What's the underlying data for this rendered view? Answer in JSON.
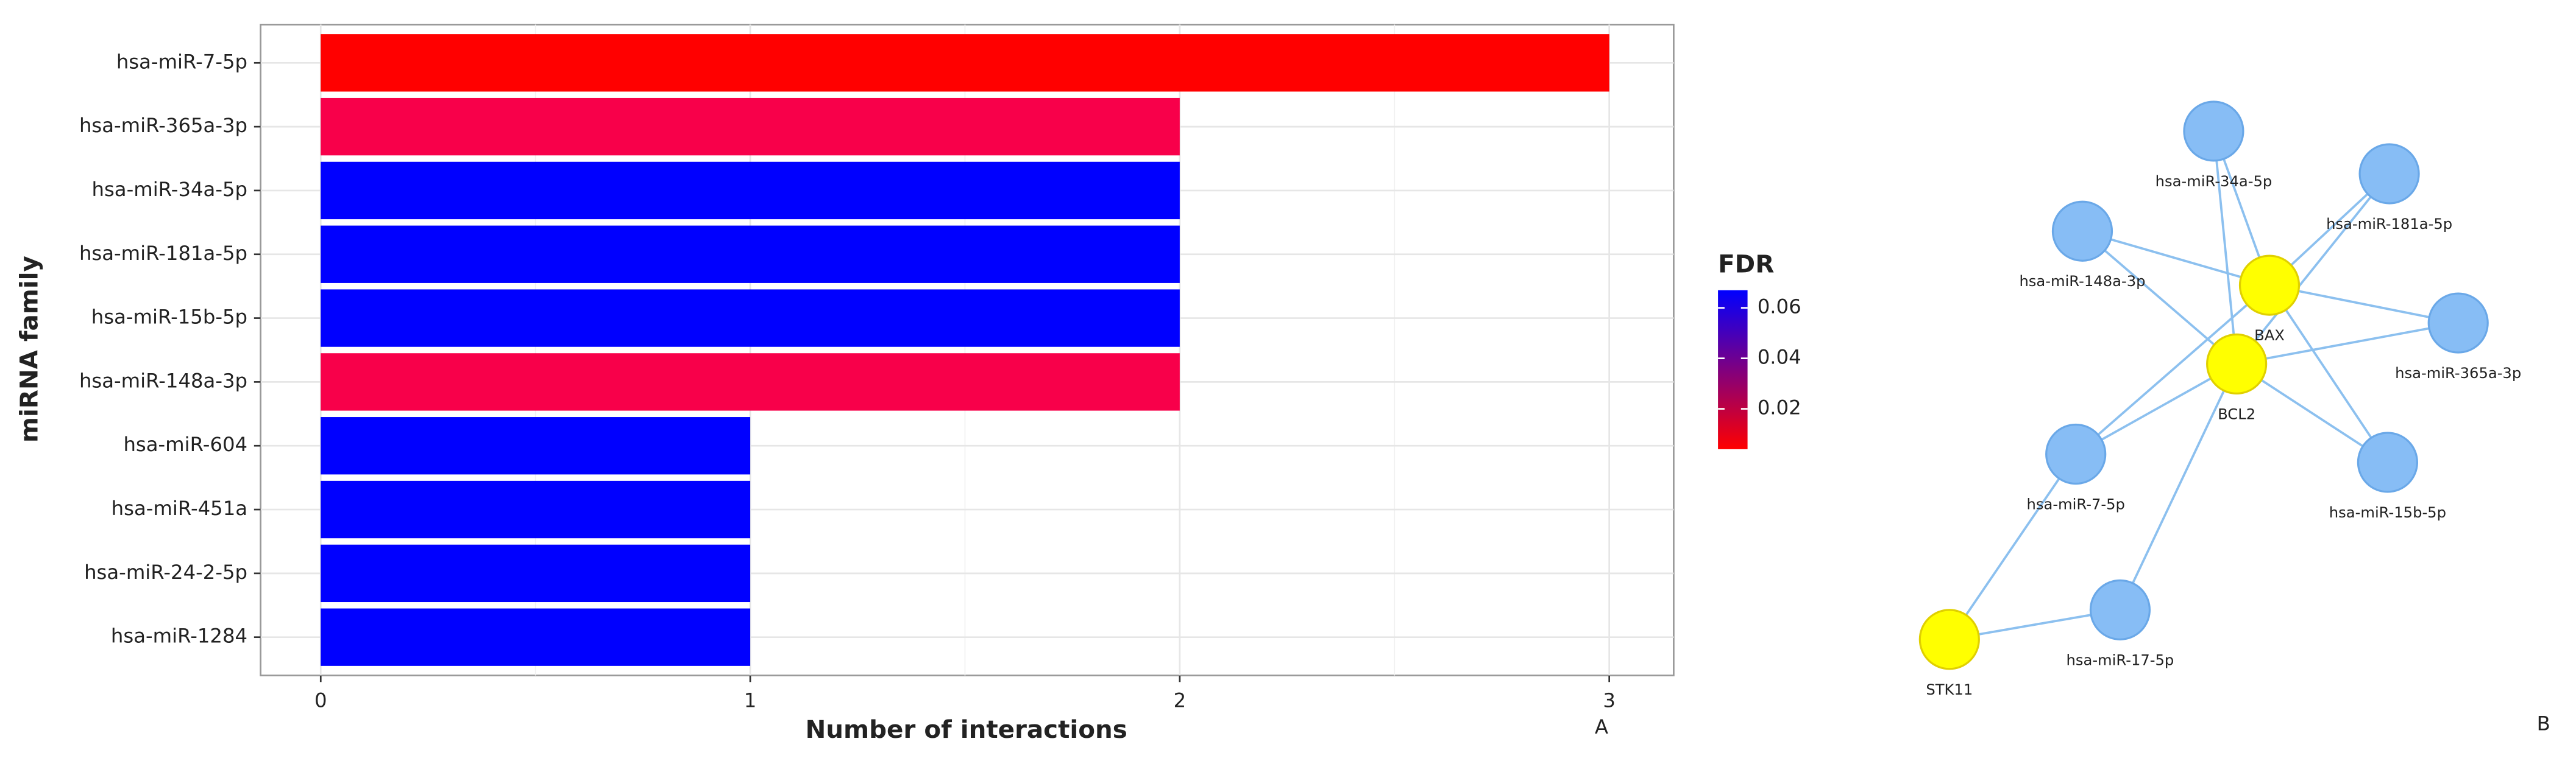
{
  "chart_data": {
    "type": "bar",
    "orientation": "horizontal",
    "categories": [
      "hsa-miR-7-5p",
      "hsa-miR-365a-3p",
      "hsa-miR-34a-5p",
      "hsa-miR-181a-5p",
      "hsa-miR-15b-5p",
      "hsa-miR-148a-3p",
      "hsa-miR-604",
      "hsa-miR-451a",
      "hsa-miR-24-2-5p",
      "hsa-miR-1284"
    ],
    "values": [
      3,
      2,
      2,
      2,
      2,
      2,
      1,
      1,
      1,
      1
    ],
    "colors": [
      "#ff0000",
      "#f8004a",
      "#0000ff",
      "#0000ff",
      "#0000ff",
      "#f8004a",
      "#0000ff",
      "#0000ff",
      "#0000ff",
      "#0000ff"
    ],
    "xlabel": "Number of interactions",
    "ylabel": "miRNA family",
    "xlim": [
      -0.14,
      3.15
    ],
    "xticks": [
      0,
      1,
      2,
      3
    ],
    "grid": true,
    "panel_label": "A",
    "colorbar": {
      "title": "FDR",
      "lim": [
        0.004,
        0.067
      ],
      "ticks": [
        0.02,
        0.04,
        0.06
      ],
      "colors": [
        "#ff0000",
        "#0000ff"
      ]
    }
  },
  "network": {
    "panel_label": "B",
    "nodes": [
      {
        "label": "hsa-miR-34a-5p",
        "color": "#87bdf5"
      },
      {
        "label": "hsa-miR-181a-5p",
        "color": "#87bdf5"
      },
      {
        "label": "hsa-miR-148a-3p",
        "color": "#87bdf5"
      },
      {
        "label": "BAX",
        "color": "#ffff00"
      },
      {
        "label": "hsa-miR-365a-3p",
        "color": "#87bdf5"
      },
      {
        "label": "BCL2",
        "color": "#ffff00"
      },
      {
        "label": "hsa-miR-7-5p",
        "color": "#87bdf5"
      },
      {
        "label": "hsa-miR-15b-5p",
        "color": "#87bdf5"
      },
      {
        "label": "hsa-miR-17-5p",
        "color": "#87bdf5"
      },
      {
        "label": "STK11",
        "color": "#ffff00"
      }
    ],
    "edges": [
      [
        3,
        0
      ],
      [
        3,
        1
      ],
      [
        3,
        2
      ],
      [
        3,
        4
      ],
      [
        3,
        7
      ],
      [
        3,
        6
      ],
      [
        5,
        0
      ],
      [
        5,
        1
      ],
      [
        5,
        2
      ],
      [
        5,
        4
      ],
      [
        5,
        7
      ],
      [
        5,
        6
      ],
      [
        5,
        8
      ],
      [
        9,
        6
      ],
      [
        9,
        8
      ]
    ]
  }
}
